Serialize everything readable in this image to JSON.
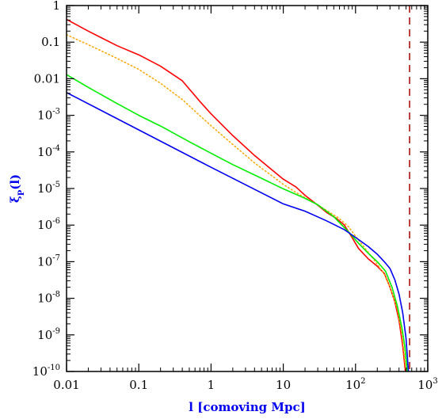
{
  "chart_data": {
    "type": "line",
    "title": "",
    "xlabel": "l [comoving Mpc]",
    "ylabel_main": "ξ",
    "ylabel_sub": "P",
    "ylabel_tail": "(l)",
    "xscale": "log",
    "yscale": "log",
    "xlim": [
      0.01,
      1000
    ],
    "ylim": [
      1e-10,
      1
    ],
    "grid": false,
    "legend": "none",
    "axis_label_color": "#0000ee",
    "xticks": [
      {
        "value": 0.01,
        "label": "0.01"
      },
      {
        "value": 0.1,
        "label": "0.1"
      },
      {
        "value": 1,
        "label": "1"
      },
      {
        "value": 10,
        "label": "10"
      },
      {
        "value": 100,
        "label": "10",
        "sup": "2"
      },
      {
        "value": 1000,
        "label": "10",
        "sup": "3"
      }
    ],
    "yticks": [
      {
        "value": 1,
        "label": "1"
      },
      {
        "value": 0.1,
        "label": "0.1"
      },
      {
        "value": 0.01,
        "label": "0.01"
      },
      {
        "value": 0.001,
        "label": "10",
        "sup": "-3"
      },
      {
        "value": 0.0001,
        "label": "10",
        "sup": "-4"
      },
      {
        "value": 1e-05,
        "label": "10",
        "sup": "-5"
      },
      {
        "value": 1e-06,
        "label": "10",
        "sup": "-6"
      },
      {
        "value": 1e-07,
        "label": "10",
        "sup": "-7"
      },
      {
        "value": 1e-08,
        "label": "10",
        "sup": "-8"
      },
      {
        "value": 1e-09,
        "label": "10",
        "sup": "-9"
      },
      {
        "value": 1e-10,
        "label": "10",
        "sup": "-10"
      }
    ],
    "series": [
      {
        "color": "#ff0000",
        "style": "solid",
        "points": [
          [
            0.01,
            0.42
          ],
          [
            0.02,
            0.2
          ],
          [
            0.05,
            0.08
          ],
          [
            0.1,
            0.045
          ],
          [
            0.2,
            0.022
          ],
          [
            0.4,
            0.0088
          ],
          [
            0.7,
            0.0024
          ],
          [
            1,
            0.0011
          ],
          [
            2,
            0.00028
          ],
          [
            4,
            8e-05
          ],
          [
            7,
            3.2e-05
          ],
          [
            10,
            1.8e-05
          ],
          [
            15,
            1.1e-05
          ],
          [
            20,
            6.5e-06
          ],
          [
            30,
            3.5e-06
          ],
          [
            40,
            2.2e-06
          ],
          [
            55,
            1.5e-06
          ],
          [
            70,
            1e-06
          ],
          [
            90,
            4.5e-07
          ],
          [
            110,
            2.3e-07
          ],
          [
            150,
            1.2e-07
          ],
          [
            200,
            7.5e-08
          ],
          [
            250,
            4.8e-08
          ],
          [
            300,
            2e-08
          ],
          [
            350,
            8e-09
          ],
          [
            400,
            2.5e-09
          ],
          [
            450,
            5e-10
          ],
          [
            490,
            1e-10
          ]
        ]
      },
      {
        "color": "#ffa500",
        "style": "dotted",
        "points": [
          [
            0.01,
            0.16
          ],
          [
            0.02,
            0.085
          ],
          [
            0.05,
            0.036
          ],
          [
            0.1,
            0.018
          ],
          [
            0.2,
            0.0075
          ],
          [
            0.4,
            0.0027
          ],
          [
            0.7,
            0.00098
          ],
          [
            1,
            0.00052
          ],
          [
            2,
            0.00016
          ],
          [
            4,
            5e-05
          ],
          [
            7,
            2.2e-05
          ],
          [
            10,
            1.3e-05
          ],
          [
            15,
            7.8e-06
          ],
          [
            20,
            5.6e-06
          ],
          [
            30,
            3.6e-06
          ],
          [
            40,
            2.5e-06
          ],
          [
            60,
            1.5e-06
          ],
          [
            80,
            9e-07
          ],
          [
            100,
            5e-07
          ],
          [
            150,
            1.8e-07
          ],
          [
            200,
            8.5e-08
          ],
          [
            250,
            4.5e-08
          ],
          [
            300,
            2e-08
          ],
          [
            380,
            5e-09
          ],
          [
            440,
            1e-09
          ],
          [
            500,
            1e-10
          ]
        ]
      },
      {
        "color": "#00ee00",
        "style": "solid",
        "points": [
          [
            0.01,
            0.013
          ],
          [
            0.02,
            0.0058
          ],
          [
            0.05,
            0.0021
          ],
          [
            0.1,
            0.001
          ],
          [
            0.2,
            0.00051
          ],
          [
            0.5,
            0.00019
          ],
          [
            1,
            9.2e-05
          ],
          [
            2,
            4.5e-05
          ],
          [
            5,
            1.9e-05
          ],
          [
            10,
            9.8e-06
          ],
          [
            20,
            5.4e-06
          ],
          [
            30,
            3.6e-06
          ],
          [
            50,
            1.7e-06
          ],
          [
            80,
            6.5e-07
          ],
          [
            110,
            3.2e-07
          ],
          [
            150,
            1.7e-07
          ],
          [
            200,
            1e-07
          ],
          [
            260,
            5.5e-08
          ],
          [
            320,
            2e-08
          ],
          [
            380,
            6e-09
          ],
          [
            440,
            1.5e-09
          ],
          [
            480,
            5e-10
          ],
          [
            520,
            1e-10
          ]
        ]
      },
      {
        "color": "#0000ee",
        "style": "solid",
        "points": [
          [
            0.01,
            0.0042
          ],
          [
            0.1,
            0.0004
          ],
          [
            1,
            3.8e-05
          ],
          [
            10,
            3.8e-06
          ],
          [
            20,
            2.4e-06
          ],
          [
            40,
            1.3e-06
          ],
          [
            70,
            7.5e-07
          ],
          [
            100,
            4.6e-07
          ],
          [
            150,
            2.6e-07
          ],
          [
            200,
            1.6e-07
          ],
          [
            250,
            1e-07
          ],
          [
            300,
            6.5e-08
          ],
          [
            350,
            3.2e-08
          ],
          [
            400,
            1.3e-08
          ],
          [
            450,
            4e-09
          ],
          [
            500,
            8e-10
          ],
          [
            540,
            1e-10
          ]
        ]
      }
    ],
    "vlines": [
      {
        "x": 560,
        "color": "#aa1111",
        "style": "dashed"
      }
    ]
  }
}
